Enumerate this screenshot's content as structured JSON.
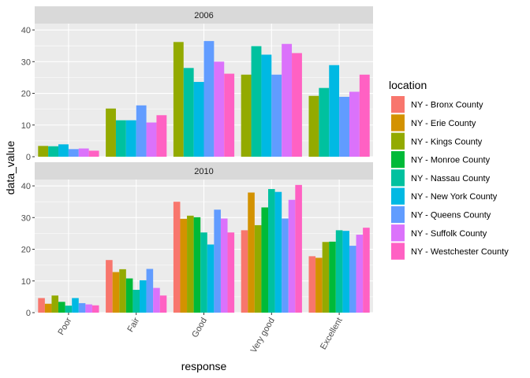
{
  "chart_data": {
    "type": "bar",
    "xlabel": "response",
    "ylabel": "data_value",
    "legend_title": "location",
    "legend_position": "right",
    "ylim": [
      0,
      42
    ],
    "yticks": [
      0,
      10,
      20,
      30,
      40
    ],
    "categories": [
      "Poor",
      "Fair",
      "Good",
      "Very good",
      "Excellent"
    ],
    "series_names": [
      "NY - Bronx County",
      "NY - Erie County",
      "NY - Kings County",
      "NY - Monroe County",
      "NY - Nassau County",
      "NY - New York County",
      "NY - Queens County",
      "NY - Suffolk County",
      "NY - Westchester County"
    ],
    "colors": [
      "#F8766D",
      "#D39200",
      "#93AA00",
      "#00BA38",
      "#00C19F",
      "#00B9E3",
      "#619CFF",
      "#DB72FB",
      "#FF61C3"
    ],
    "panels": [
      {
        "label": "2006",
        "present": [
          false,
          false,
          true,
          false,
          true,
          true,
          true,
          true,
          true
        ],
        "values": [
          [
            null,
            null,
            3.4,
            null,
            3.3,
            3.9,
            2.4,
            2.6,
            1.9
          ],
          [
            null,
            null,
            15.2,
            null,
            11.5,
            11.5,
            16.2,
            10.8,
            13.1
          ],
          [
            null,
            null,
            36.2,
            null,
            28.0,
            23.6,
            36.5,
            30.0,
            26.2
          ],
          [
            null,
            null,
            25.9,
            null,
            34.9,
            32.2,
            25.9,
            35.6,
            32.7
          ],
          [
            null,
            null,
            19.2,
            null,
            21.7,
            28.9,
            18.9,
            20.5,
            25.9
          ]
        ]
      },
      {
        "label": "2010",
        "present": [
          true,
          true,
          true,
          true,
          true,
          true,
          true,
          true,
          true
        ],
        "values": [
          [
            4.6,
            2.8,
            5.4,
            3.4,
            2.2,
            4.6,
            3.0,
            2.6,
            2.3
          ],
          [
            16.6,
            12.8,
            13.7,
            10.8,
            7.2,
            10.2,
            13.8,
            7.8,
            5.4
          ],
          [
            35.0,
            29.6,
            30.6,
            30.1,
            25.3,
            21.5,
            32.5,
            29.7,
            25.3
          ],
          [
            26.0,
            37.9,
            27.6,
            33.2,
            39.0,
            38.1,
            29.7,
            35.6,
            40.3
          ],
          [
            17.8,
            17.3,
            22.3,
            22.4,
            26.0,
            25.8,
            21.1,
            24.6,
            26.8
          ]
        ]
      }
    ]
  }
}
